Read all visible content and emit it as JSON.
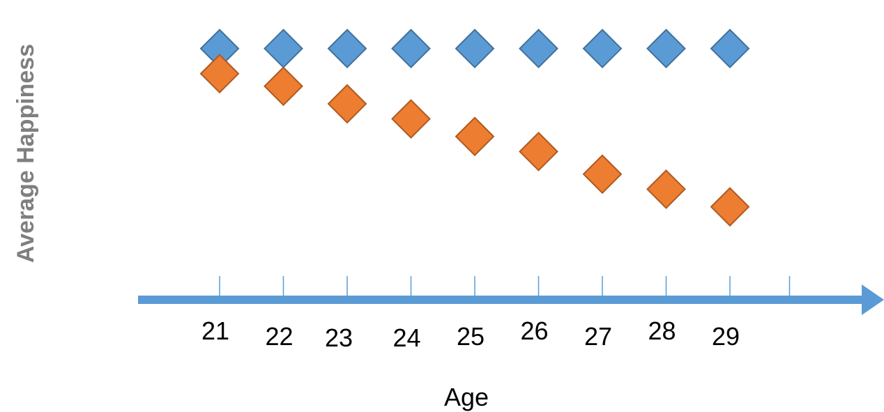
{
  "chart_data": {
    "type": "scatter",
    "title": "",
    "xlabel": "Age",
    "ylabel": "Average Happiness",
    "x_ticks": [
      21,
      22,
      23,
      24,
      25,
      26,
      27,
      28,
      29
    ],
    "x": [
      21,
      22,
      23,
      24,
      25,
      26,
      27,
      28,
      29
    ],
    "series": [
      {
        "color": "#5b9bd5",
        "values": [
          10,
          10,
          10,
          10,
          10,
          10,
          10,
          10,
          10
        ]
      },
      {
        "color": "#ed7d31",
        "values": [
          9,
          8.5,
          7.8,
          7.2,
          6.5,
          5.9,
          5.0,
          4.4,
          3.7
        ]
      }
    ],
    "ylim": [
      0,
      10.6
    ],
    "grid": false,
    "legend": "none",
    "axis_color": "#5b9bd5"
  }
}
